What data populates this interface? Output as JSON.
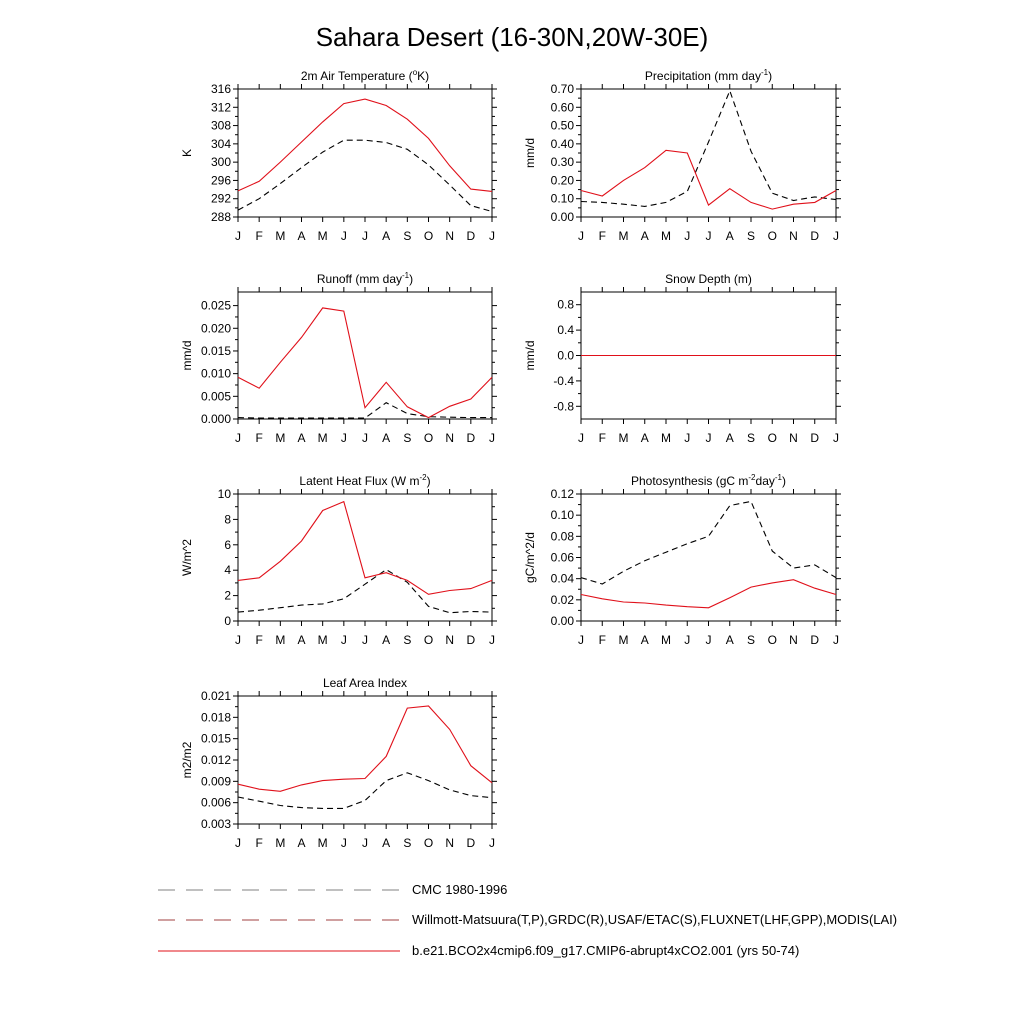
{
  "figure": {
    "title": "Sahara Desert (16-30N,20W-30E)"
  },
  "legend": {
    "items": [
      {
        "label": "CMC 1980-1996",
        "color": "#808080",
        "dash": "long"
      },
      {
        "label": "Willmott-Matsuura(T,P),GRDC(R),USAF/ETAC(S),FLUXNET(LHF,GPP),MODIS(LAI)",
        "color": "#a04040",
        "dash": "long-mixed"
      },
      {
        "label": "b.e21.BCO2x4cmip6.f09_g17.CMIP6-abrupt4xCO2.001 (yrs 50-74)",
        "color": "#e0101a",
        "dash": "solid"
      }
    ]
  },
  "colors": {
    "obs": "#000000",
    "model": "#e0101a"
  },
  "chart_data": [
    {
      "type": "line",
      "title": "2m Air Temperature (",
      "title_sup": "o",
      "title_tail": "K)",
      "ylabel": "K",
      "categories": [
        "J",
        "F",
        "M",
        "A",
        "M",
        "J",
        "J",
        "A",
        "S",
        "O",
        "N",
        "D",
        "J"
      ],
      "ylim": [
        288,
        316
      ],
      "yticks": [
        288,
        292,
        296,
        300,
        304,
        308,
        312,
        316
      ],
      "ytick_labels": [
        "288",
        "292",
        "296",
        "300",
        "304",
        "308",
        "312",
        "316"
      ],
      "series": [
        {
          "role": "obs",
          "values": [
            289.5,
            292,
            295.3,
            298.8,
            302.2,
            304.8,
            304.8,
            304.3,
            302.8,
            299.4,
            295,
            290.5,
            289.2
          ]
        },
        {
          "role": "model",
          "values": [
            293.7,
            295.8,
            300,
            304.4,
            308.8,
            312.8,
            313.8,
            312.4,
            309.4,
            305.2,
            299.2,
            294.1,
            293.6
          ]
        }
      ]
    },
    {
      "type": "line",
      "title": "Precipitation (mm day",
      "title_sup": "-1",
      "title_tail": ")",
      "ylabel": "mm/d",
      "categories": [
        "J",
        "F",
        "M",
        "A",
        "M",
        "J",
        "J",
        "A",
        "S",
        "O",
        "N",
        "D",
        "J"
      ],
      "ylim": [
        0,
        0.7
      ],
      "yticks": [
        0,
        0.1,
        0.2,
        0.3,
        0.4,
        0.5,
        0.6,
        0.7
      ],
      "ytick_labels": [
        "0.00",
        "0.10",
        "0.20",
        "0.30",
        "0.40",
        "0.50",
        "0.60",
        "0.70"
      ],
      "series": [
        {
          "role": "obs",
          "values": [
            0.085,
            0.08,
            0.07,
            0.058,
            0.08,
            0.14,
            0.41,
            0.69,
            0.36,
            0.13,
            0.09,
            0.11,
            0.095
          ]
        },
        {
          "role": "model",
          "values": [
            0.145,
            0.115,
            0.2,
            0.27,
            0.365,
            0.35,
            0.065,
            0.155,
            0.08,
            0.043,
            0.07,
            0.08,
            0.145
          ]
        }
      ]
    },
    {
      "type": "line",
      "title": "Runoff (mm day",
      "title_sup": "-1",
      "title_tail": ")",
      "ylabel": "mm/d",
      "categories": [
        "J",
        "F",
        "M",
        "A",
        "M",
        "J",
        "J",
        "A",
        "S",
        "O",
        "N",
        "D",
        "J"
      ],
      "ylim": [
        0,
        0.028
      ],
      "yticks": [
        0,
        0.005,
        0.01,
        0.015,
        0.02,
        0.025
      ],
      "ytick_labels": [
        "0.000",
        "0.005",
        "0.010",
        "0.015",
        "0.020",
        "0.025"
      ],
      "series": [
        {
          "role": "obs",
          "values": [
            0.0003,
            0.0002,
            0.0002,
            0.0002,
            0.0002,
            0.0002,
            0.0002,
            0.0036,
            0.0012,
            0.0005,
            0.0004,
            0.0003,
            0.0003
          ]
        },
        {
          "role": "model",
          "values": [
            0.0092,
            0.0068,
            0.0125,
            0.018,
            0.0245,
            0.0238,
            0.0025,
            0.0081,
            0.0027,
            0.0003,
            0.0028,
            0.0044,
            0.0092
          ]
        }
      ]
    },
    {
      "type": "line",
      "title": "Snow Depth (m)",
      "title_sup": "",
      "title_tail": "",
      "ylabel": "mm/d",
      "categories": [
        "J",
        "F",
        "M",
        "A",
        "M",
        "J",
        "J",
        "A",
        "S",
        "O",
        "N",
        "D",
        "J"
      ],
      "ylim": [
        -1,
        1
      ],
      "yticks": [
        -0.8,
        -0.4,
        0,
        0.4,
        0.8
      ],
      "ytick_labels": [
        "-0.8",
        "-0.4",
        "0.0",
        "0.4",
        "0.8"
      ],
      "series": [
        {
          "role": "obs",
          "values": [
            0,
            0,
            0,
            0,
            0,
            0,
            0,
            0,
            0,
            0,
            0,
            0,
            0
          ]
        },
        {
          "role": "model",
          "values": [
            0,
            0,
            0,
            0,
            0,
            0,
            0,
            0,
            0,
            0,
            0,
            0,
            0
          ]
        }
      ]
    },
    {
      "type": "line",
      "title": "Latent Heat Flux (W m",
      "title_sup": "-2",
      "title_tail": ")",
      "ylabel": "W/m^2",
      "categories": [
        "J",
        "F",
        "M",
        "A",
        "M",
        "J",
        "J",
        "A",
        "S",
        "O",
        "N",
        "D",
        "J"
      ],
      "ylim": [
        0,
        10
      ],
      "yticks": [
        0,
        2,
        4,
        6,
        8,
        10
      ],
      "ytick_labels": [
        "0",
        "2",
        "4",
        "6",
        "8",
        "10"
      ],
      "series": [
        {
          "role": "obs",
          "values": [
            0.7,
            0.85,
            1.05,
            1.25,
            1.35,
            1.75,
            2.9,
            4.05,
            3.05,
            1.15,
            0.65,
            0.75,
            0.7
          ]
        },
        {
          "role": "model",
          "values": [
            3.2,
            3.4,
            4.7,
            6.3,
            8.7,
            9.4,
            3.4,
            3.8,
            3.2,
            2.1,
            2.4,
            2.55,
            3.2
          ]
        }
      ]
    },
    {
      "type": "line",
      "title": "Photosynthesis (gC m",
      "title_sup": "-2",
      "title_tail": "day",
      "title_sup2": "-1",
      "title_tail2": ")",
      "ylabel": "gC/m^2/d",
      "categories": [
        "J",
        "F",
        "M",
        "A",
        "M",
        "J",
        "J",
        "A",
        "S",
        "O",
        "N",
        "D",
        "J"
      ],
      "ylim": [
        0,
        0.12
      ],
      "yticks": [
        0,
        0.02,
        0.04,
        0.06,
        0.08,
        0.1,
        0.12
      ],
      "ytick_labels": [
        "0.00",
        "0.02",
        "0.04",
        "0.06",
        "0.08",
        "0.10",
        "0.12"
      ],
      "series": [
        {
          "role": "obs",
          "values": [
            0.041,
            0.035,
            0.047,
            0.057,
            0.065,
            0.073,
            0.08,
            0.109,
            0.113,
            0.066,
            0.05,
            0.053,
            0.041
          ]
        },
        {
          "role": "model",
          "values": [
            0.025,
            0.021,
            0.018,
            0.017,
            0.015,
            0.0135,
            0.0125,
            0.022,
            0.032,
            0.036,
            0.039,
            0.031,
            0.025
          ]
        }
      ]
    },
    {
      "type": "line",
      "title": "Leaf Area Index",
      "title_sup": "",
      "title_tail": "",
      "ylabel": "m2/m2",
      "categories": [
        "J",
        "F",
        "M",
        "A",
        "M",
        "J",
        "J",
        "A",
        "S",
        "O",
        "N",
        "D",
        "J"
      ],
      "ylim": [
        0.003,
        0.021
      ],
      "yticks": [
        0.003,
        0.006,
        0.009,
        0.012,
        0.015,
        0.018,
        0.021
      ],
      "ytick_labels": [
        "0.003",
        "0.006",
        "0.009",
        "0.012",
        "0.015",
        "0.018",
        "0.021"
      ],
      "series": [
        {
          "role": "obs",
          "values": [
            0.0068,
            0.0062,
            0.0056,
            0.0053,
            0.0052,
            0.0052,
            0.0063,
            0.0091,
            0.0102,
            0.0091,
            0.0078,
            0.007,
            0.0067
          ]
        },
        {
          "role": "model",
          "values": [
            0.0086,
            0.0079,
            0.0076,
            0.0085,
            0.0091,
            0.0093,
            0.0094,
            0.0125,
            0.0193,
            0.0196,
            0.0163,
            0.0112,
            0.0088
          ]
        }
      ]
    }
  ]
}
